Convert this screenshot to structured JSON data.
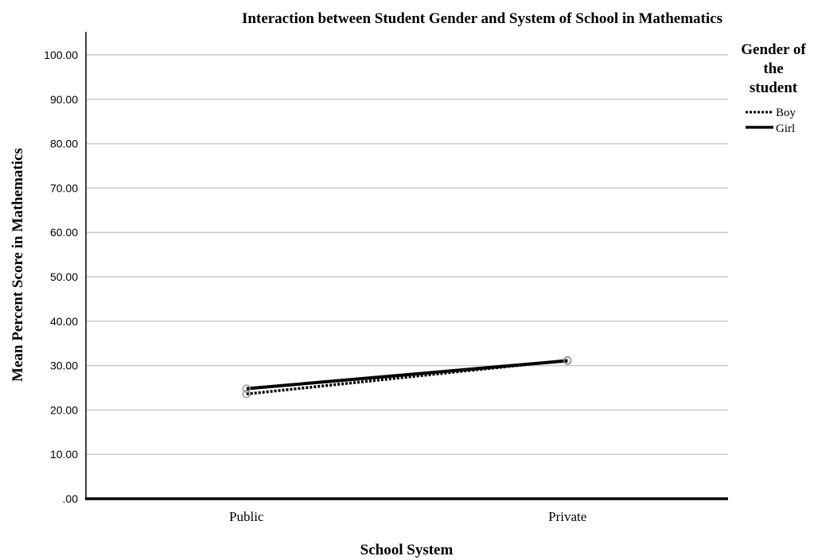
{
  "chart_data": {
    "type": "line",
    "title": "Interaction between Student Gender and System of School in Mathematics",
    "xlabel": "School System",
    "ylabel": "Mean Percent Score in Mathematics",
    "categories": [
      "Public",
      "Private"
    ],
    "yticks": [
      ".00",
      "10.00",
      "20.00",
      "30.00",
      "40.00",
      "50.00",
      "60.00",
      "70.00",
      "80.00",
      "90.00",
      "100.00"
    ],
    "ylim": [
      0,
      105
    ],
    "grid": true,
    "legend": {
      "title_lines": [
        "Gender of",
        "the",
        "student"
      ],
      "placement": "right"
    },
    "series": [
      {
        "name": "Boy",
        "style": "dotted",
        "values": [
          23.6,
          31.2
        ]
      },
      {
        "name": "Girl",
        "style": "solid",
        "values": [
          24.8,
          31.1
        ]
      }
    ],
    "colors": {
      "line": "#000000",
      "grid": "#c8c8c8",
      "marker": "#999999"
    }
  }
}
